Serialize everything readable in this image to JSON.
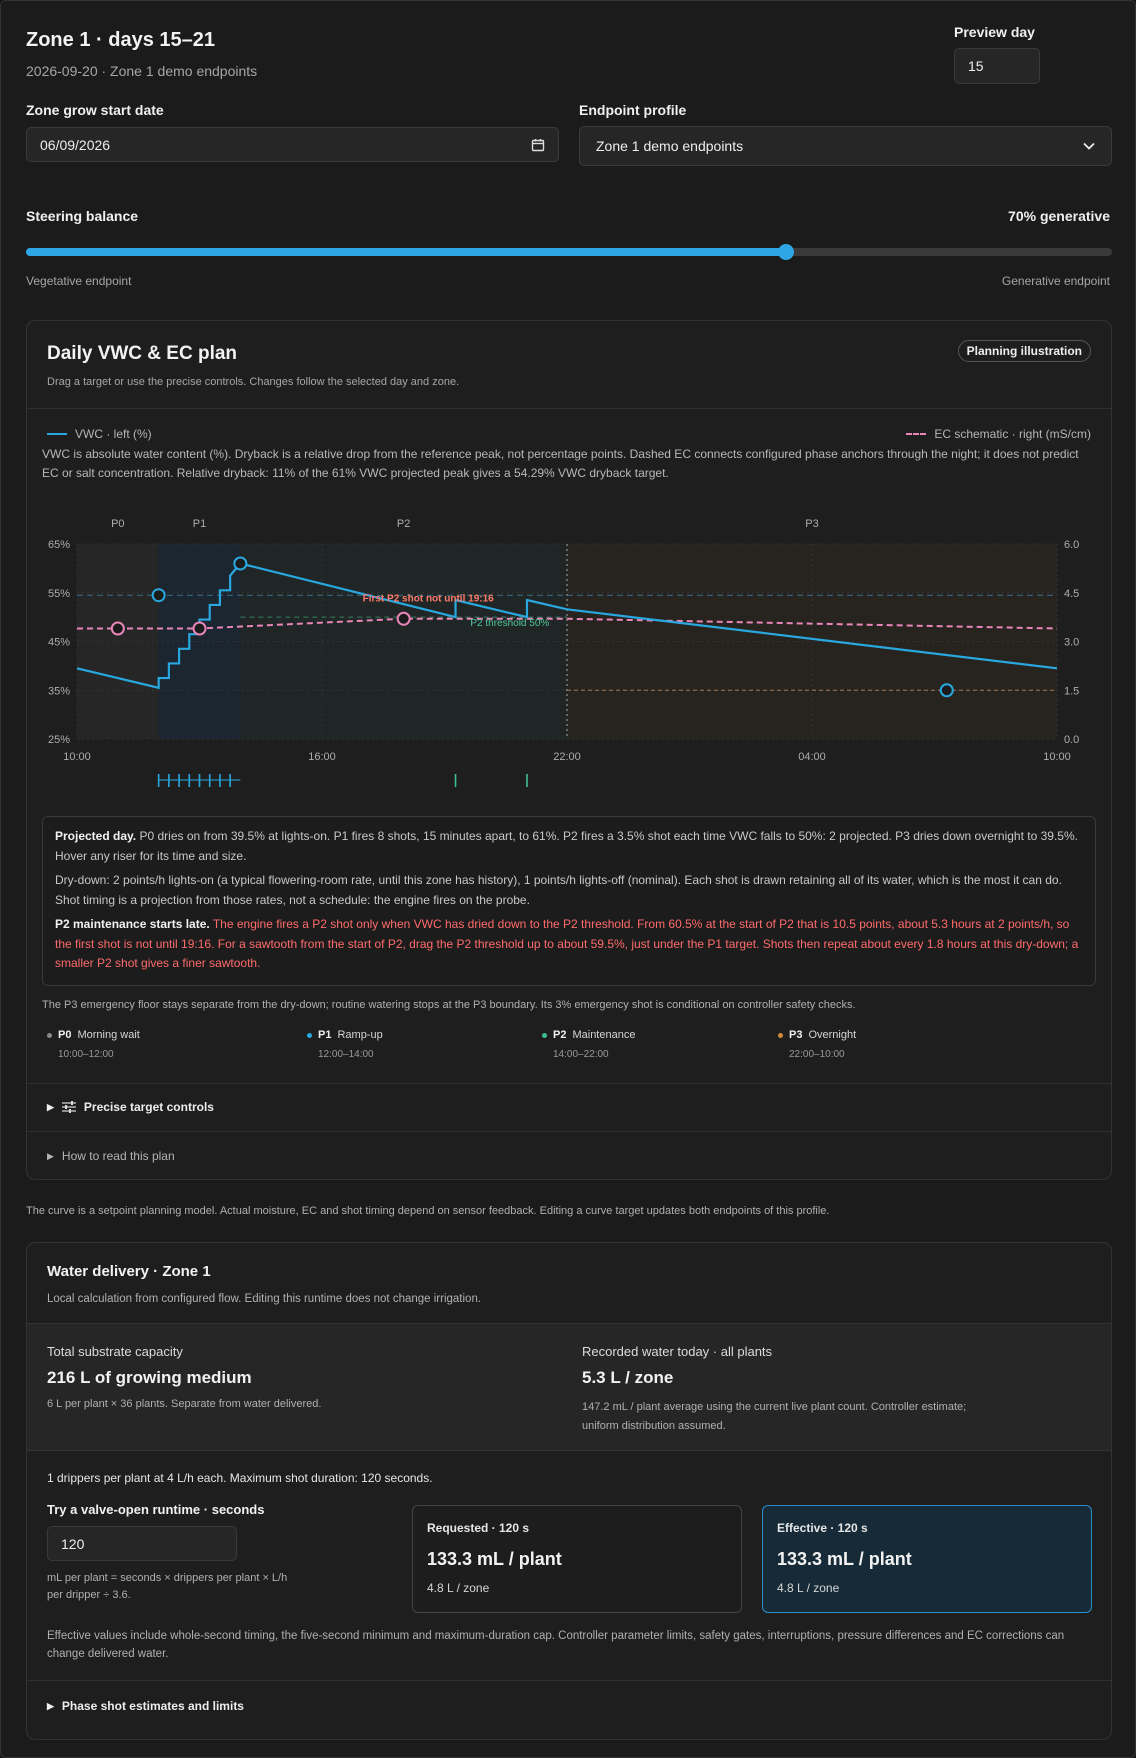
{
  "header": {
    "title": "Zone 1 · days 15–21",
    "subtitle": "2026-09-20 · Zone 1 demo endpoints",
    "preview_label": "Preview day",
    "preview_value": "15"
  },
  "controls": {
    "start_label": "Zone grow start date",
    "start_value": "06/09/2026",
    "profile_label": "Endpoint profile",
    "profile_value": "Zone 1 demo endpoints"
  },
  "steering": {
    "label": "Steering balance",
    "value_text": "70% generative",
    "value": 0.7,
    "left": "Vegetative endpoint",
    "right": "Generative endpoint"
  },
  "plan": {
    "title": "Daily VWC & EC plan",
    "badge": "Planning illustration",
    "desc": "Drag a target or use the precise controls. Changes follow the selected day and zone.",
    "legend_left": "VWC · left (%)",
    "legend_right": "EC schematic · right (mS/cm)",
    "explain": "VWC is absolute water content (%). Dryback is a relative drop from the reference peak, not percentage points. Dashed EC connects configured phase anchors through the night; it does not predict EC or salt concentration. Relative dryback: 11% of the 61% VWC projected peak gives a 54.29% VWC dryback target.",
    "phase_labels": [
      "P0",
      "P1",
      "P2",
      "P3"
    ],
    "annot_warn": "First P2 shot not until 19:16",
    "annot_thresh": "P2 threshold 50%",
    "proj_b1": "Projected day.",
    "proj_t1": " P0 dries on from 39.5% at lights-on. P1 fires 8 shots, 15 minutes apart, to 61%. P2 fires a 3.5% shot each time VWC falls to 50%: 2 projected. P3 dries down overnight to 39.5%. Hover any riser for its time and size.",
    "proj_t2": "Dry-down: 2 points/h lights-on (a typical flowering-room rate, until this zone has history), 1 points/h lights-off (nominal). Each shot is drawn retaining all of its water, which is the most it can do. Shot timing is a projection from those rates, not a schedule: the engine fires on the probe.",
    "proj_b3": "P2 maintenance starts late.",
    "proj_t3": " The engine fires a P2 shot only when VWC has dried down to the P2 threshold. From 60.5% at the start of P2 that is 10.5 points, about 5.3 hours at 2 points/h, so the first shot is not until 19:16. For a sawtooth from the start of P2, drag the P2 threshold up to about 59.5%, just under the P1 target. Shots then repeat about every 1.8 hours at this dry-down; a smaller P2 shot gives a finer sawtooth.",
    "p3_note": "The P3 emergency floor stays separate from the dry-down; routine watering stops at the P3 boundary. Its 3% emergency shot is conditional on controller safety checks.",
    "phases": [
      {
        "code": "P0",
        "name": "Morning wait",
        "time": "10:00–12:00",
        "color": "#8a8a8a"
      },
      {
        "code": "P1",
        "name": "Ramp-up",
        "time": "12:00–14:00",
        "color": "#29a8e0"
      },
      {
        "code": "P2",
        "name": "Maintenance",
        "time": "14:00–22:00",
        "color": "#3fbf8f"
      },
      {
        "code": "P3",
        "name": "Overnight",
        "time": "22:00–10:00",
        "color": "#d48a3a"
      }
    ],
    "precise_label": "Precise target controls",
    "howto_label": "How to read this plan"
  },
  "footnote": "The curve is a setpoint planning model. Actual moisture, EC and shot timing depend on sensor feedback. Editing a curve target updates both endpoints of this profile.",
  "water": {
    "title": "Water delivery · Zone 1",
    "desc": "Local calculation from configured flow. Editing this runtime does not change irrigation.",
    "cap_label": "Total substrate capacity",
    "cap_value": "216 L of growing medium",
    "cap_note": "6 L per plant × 36 plants. Separate from water delivered.",
    "rec_label": "Recorded water today · all plants",
    "rec_value": "5.3 L / zone",
    "rec_note1": "147.2 mL / plant average using the current live plant count. Controller estimate;",
    "rec_note2": "uniform distribution assumed.",
    "dripper": "1 drippers per plant at 4 L/h each. Maximum shot duration: 120 seconds.",
    "try_label": "Try a valve-open runtime · seconds",
    "try_value": "120",
    "formula1": "mL per plant = seconds × drippers per plant × L/h",
    "formula2": "per dripper ÷ 3.6.",
    "req_label": "Requested · 120 s",
    "req_value": "133.3 mL / plant",
    "req_zone": "4.8 L / zone",
    "eff_label": "Effective · 120 s",
    "eff_value": "133.3 mL / plant",
    "eff_zone": "4.8 L / zone",
    "eff_note": "Effective values include whole-second timing, the five-second minimum and maximum-duration cap. Controller parameter limits, safety gates, interruptions, pressure differences and EC corrections can change delivered water.",
    "shot_label": "Phase shot estimates and limits"
  },
  "chart_data": {
    "type": "line",
    "x_ticks": [
      "10:00",
      "16:00",
      "22:00",
      "04:00",
      "10:00"
    ],
    "y_left": {
      "label": "VWC · left (%)",
      "ticks": [
        "65%",
        "55%",
        "45%",
        "35%",
        "25%"
      ],
      "range": [
        25,
        65
      ]
    },
    "y_right": {
      "label": "EC schematic · right (mS/cm)",
      "ticks": [
        "6.0",
        "4.5",
        "3.0",
        "1.5",
        "0.0"
      ],
      "range": [
        0,
        6
      ]
    },
    "series": [
      {
        "name": "VWC · left (%)",
        "color": "#29a8e0",
        "points": [
          [
            0,
            39.5
          ],
          [
            2,
            35.5
          ],
          [
            2,
            37.5
          ],
          [
            2.25,
            37.5
          ],
          [
            2.25,
            40.5
          ],
          [
            2.5,
            40.5
          ],
          [
            2.5,
            43.5
          ],
          [
            2.75,
            43.5
          ],
          [
            2.75,
            46.5
          ],
          [
            3,
            46.5
          ],
          [
            3,
            49.5
          ],
          [
            3.25,
            49.5
          ],
          [
            3.25,
            52.5
          ],
          [
            3.5,
            52.5
          ],
          [
            3.5,
            55.5
          ],
          [
            3.75,
            55.5
          ],
          [
            3.75,
            58.5
          ],
          [
            4,
            61
          ],
          [
            9.27,
            50
          ],
          [
            9.27,
            53.5
          ],
          [
            11.02,
            50
          ],
          [
            11.02,
            53.5
          ],
          [
            12,
            51.6
          ],
          [
            24,
            39.5
          ]
        ]
      },
      {
        "name": "EC schematic · right (mS/cm)",
        "color": "#e985b9",
        "dashed": true,
        "points": [
          [
            0,
            3.4
          ],
          [
            1,
            3.4
          ],
          [
            3,
            3.4
          ],
          [
            8,
            3.7
          ],
          [
            12,
            3.7
          ],
          [
            24,
            3.4
          ]
        ]
      }
    ],
    "targets_vwc": [
      {
        "x": 2,
        "y": 54.5
      },
      {
        "x": 4,
        "y": 61
      },
      {
        "x": 21.3,
        "y": 35
      }
    ],
    "targets_ec": [
      {
        "x": 1,
        "y": 3.4
      },
      {
        "x": 3,
        "y": 3.4
      },
      {
        "x": 8,
        "y": 3.7
      }
    ],
    "ref_lines": [
      {
        "y": 54.5,
        "color": "#3c6d8a"
      },
      {
        "y": 35,
        "color": "#a67a5a"
      }
    ],
    "threshold": 50,
    "shots_p1": [
      2,
      2.25,
      2.5,
      2.75,
      3,
      3.25,
      3.5,
      3.75
    ],
    "shots_p2": [
      9.27,
      11.02
    ]
  }
}
